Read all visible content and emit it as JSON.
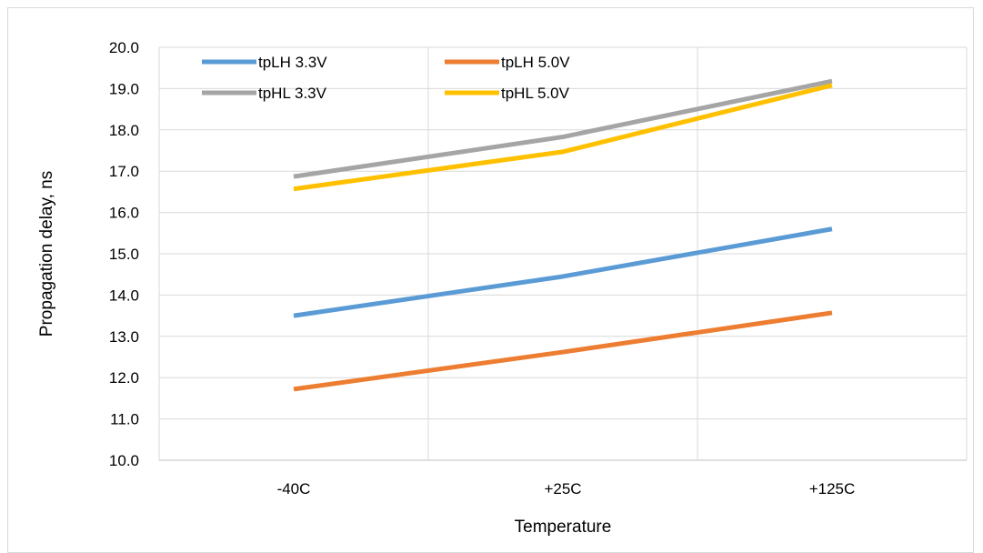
{
  "chart_data": {
    "type": "line",
    "title": "",
    "xlabel": "Temperature",
    "ylabel": "Propagation delay, ns",
    "categories": [
      "-40C",
      "+25C",
      "+125C"
    ],
    "ylim": [
      10.0,
      20.0
    ],
    "ytick_step": 1.0,
    "ytick_labels": [
      "10.0",
      "11.0",
      "12.0",
      "13.0",
      "14.0",
      "15.0",
      "16.0",
      "17.0",
      "18.0",
      "19.0",
      "20.0"
    ],
    "grid": true,
    "legend_position": "top-left, inside plot",
    "series": [
      {
        "name": "tpLH 3.3V",
        "color": "#5b9bd5",
        "values": [
          13.5,
          14.45,
          15.6
        ]
      },
      {
        "name": "tpLH 5.0V",
        "color": "#ed7d31",
        "values": [
          11.72,
          12.62,
          13.57
        ]
      },
      {
        "name": "tpHL 3.3V",
        "color": "#a5a5a5",
        "values": [
          16.87,
          17.83,
          19.18
        ]
      },
      {
        "name": "tpHL 5.0V",
        "color": "#ffc000",
        "values": [
          16.57,
          17.47,
          19.08
        ]
      }
    ]
  }
}
